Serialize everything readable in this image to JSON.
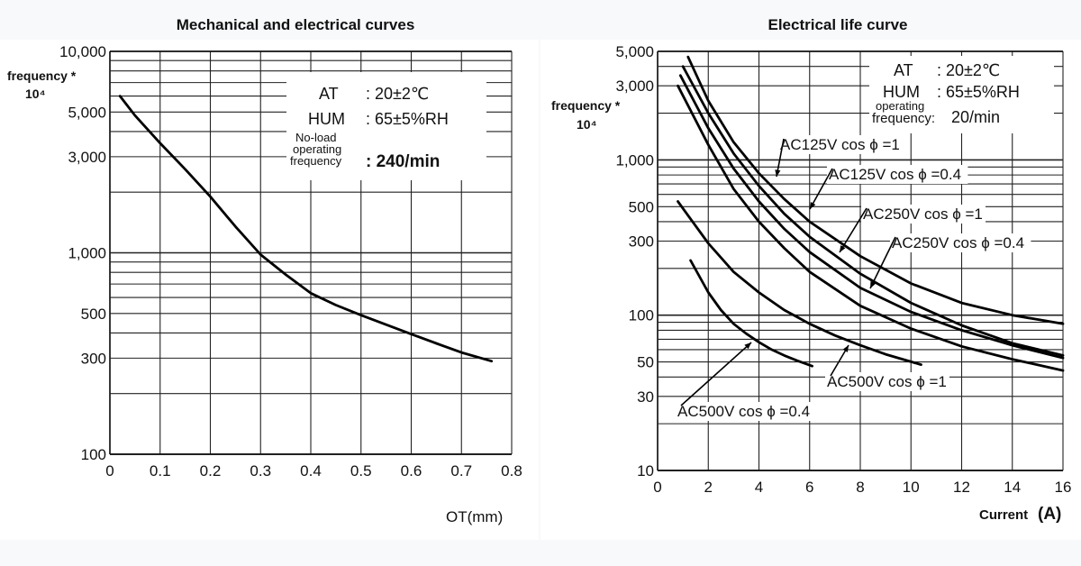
{
  "chart_data": [
    {
      "type": "line",
      "title": "Mechanical and electrical curves",
      "ylabel": "frequency *",
      "ylabel_unit": "10⁴",
      "xlabel": "OT(mm)",
      "x_ticks": [
        "0",
        "0.1",
        "0.2",
        "0.3",
        "0.4",
        "0.5",
        "0.6",
        "0.7",
        "0.8"
      ],
      "y_ticks": [
        {
          "value": 10000,
          "label": "10,000"
        },
        {
          "value": 5000,
          "label": "5,000"
        },
        {
          "value": 3000,
          "label": "3,000"
        },
        {
          "value": 1000,
          "label": "1,000"
        },
        {
          "value": 500,
          "label": "500"
        },
        {
          "value": 300,
          "label": "300"
        },
        {
          "value": 100,
          "label": "100"
        }
      ],
      "xlim": [
        0,
        0.8
      ],
      "ylim": [
        100,
        10000
      ],
      "y_scale": "log",
      "grid": true,
      "conditions": {
        "at_key": "AT",
        "at_value": ": 20±2℃",
        "hum_key": "HUM",
        "hum_value": ": 65±5%RH",
        "freq_key_1": "No-load",
        "freq_key_2": "operating",
        "freq_key_3": "frequency",
        "freq_value": ": 240/min"
      },
      "series": [
        {
          "x": [
            0.02,
            0.05,
            0.1,
            0.15,
            0.2,
            0.25,
            0.3,
            0.35,
            0.4,
            0.45,
            0.5,
            0.55,
            0.6,
            0.65,
            0.7,
            0.76
          ],
          "y": [
            6000,
            4800,
            3500,
            2600,
            1900,
            1350,
            980,
            780,
            630,
            550,
            490,
            440,
            395,
            355,
            320,
            290
          ]
        }
      ]
    },
    {
      "type": "line",
      "title": "Electrical life curve",
      "ylabel": "frequency *",
      "ylabel_unit": "10⁴",
      "xlabel": "Current",
      "xlabel_unit": "(A)",
      "x_ticks": [
        "0",
        "2",
        "4",
        "6",
        "8",
        "10",
        "12",
        "14",
        "16"
      ],
      "y_ticks": [
        {
          "value": 5000,
          "label": "5,000"
        },
        {
          "value": 3000,
          "label": "3,000"
        },
        {
          "value": 1000,
          "label": "1,000"
        },
        {
          "value": 500,
          "label": "500"
        },
        {
          "value": 300,
          "label": "300"
        },
        {
          "value": 100,
          "label": "100"
        },
        {
          "value": 50,
          "label": "50"
        },
        {
          "value": 30,
          "label": "30"
        },
        {
          "value": 10,
          "label": "10"
        }
      ],
      "xlim": [
        0,
        16
      ],
      "ylim": [
        10,
        5000
      ],
      "y_scale": "log",
      "grid": true,
      "conditions": {
        "at_key": "AT",
        "at_value": ": 20±2℃",
        "hum_key": "HUM",
        "hum_value": ": 65±5%RH",
        "freq_key_1": "operating",
        "freq_key_2": "frequency:",
        "freq_value": "20/min"
      },
      "series": [
        {
          "name": "AC125V cos ϕ =1",
          "x": [
            1.2,
            2,
            3,
            4,
            5,
            6,
            8,
            10,
            12,
            14,
            16
          ],
          "y": [
            4600,
            2400,
            1300,
            820,
            560,
            400,
            240,
            160,
            120,
            100,
            88
          ]
        },
        {
          "name": "AC125V cos ϕ =0.4",
          "x": [
            1.0,
            2,
            3,
            4,
            5,
            6,
            8,
            10,
            12,
            14,
            16
          ],
          "y": [
            4000,
            2000,
            1100,
            680,
            450,
            320,
            185,
            120,
            86,
            66,
            55
          ]
        },
        {
          "name": "AC250V cos ϕ =1",
          "x": [
            0.9,
            2,
            3,
            4,
            5,
            6,
            8,
            10,
            12,
            14,
            16
          ],
          "y": [
            3500,
            1600,
            880,
            540,
            360,
            255,
            150,
            105,
            80,
            64,
            53
          ]
        },
        {
          "name": "AC250V cos ϕ =0.4",
          "x": [
            0.8,
            2,
            3,
            4,
            5,
            6,
            8,
            10,
            12,
            14,
            16
          ],
          "y": [
            3000,
            1250,
            650,
            400,
            270,
            190,
            115,
            82,
            63,
            52,
            44
          ]
        },
        {
          "name": "AC500V cos ϕ =1",
          "x": [
            0.8,
            2,
            3,
            4,
            5,
            6,
            7,
            8,
            9,
            10.4
          ],
          "y": [
            540,
            290,
            190,
            140,
            108,
            88,
            74,
            64,
            56,
            48
          ]
        },
        {
          "name": "AC500V cos ϕ =0.4",
          "x": [
            1.3,
            2,
            2.5,
            3,
            3.5,
            4,
            4.5,
            5,
            5.5,
            6.1
          ],
          "y": [
            225,
            140,
            108,
            88,
            76,
            67,
            60,
            55,
            51,
            47
          ]
        }
      ]
    }
  ]
}
